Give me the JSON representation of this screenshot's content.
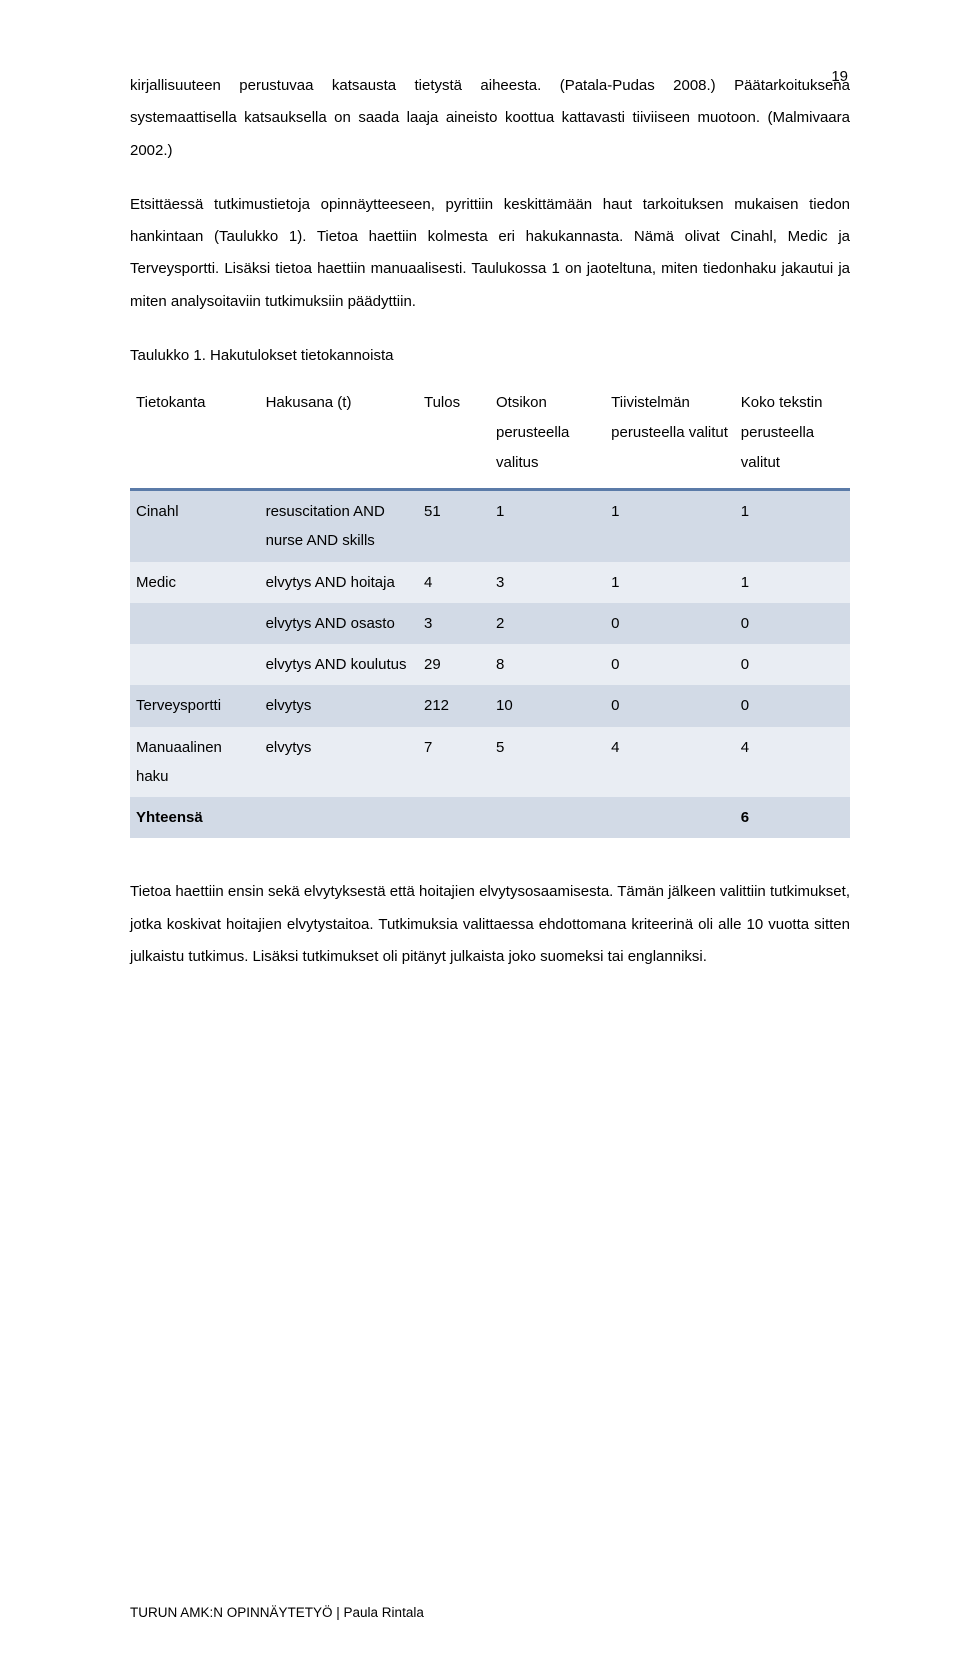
{
  "page_number": "19",
  "paragraphs": {
    "p1": "kirjallisuuteen perustuvaa katsausta tietystä aiheesta. (Patala-Pudas 2008.) Päätarkoituksena systemaattisella katsauksella on saada laaja aineisto koottua kattavasti tiiviiseen muotoon. (Malmivaara 2002.)",
    "p2": "Etsittäessä tutkimustietoja opinnäytteeseen, pyrittiin keskittämään haut tarkoituksen mukaisen tiedon hankintaan (Taulukko 1). Tietoa haettiin kolmesta eri hakukannasta. Nämä olivat Cinahl, Medic ja Terveysportti. Lisäksi tietoa haettiin manuaalisesti. Taulukossa 1 on jaoteltuna, miten tiedonhaku jakautui ja miten analysoitaviin tutkimuksiin päädyttiin.",
    "p3": "Tietoa haettiin ensin sekä elvytyksestä että hoitajien elvytysosaamisesta. Tämän jälkeen valittiin tutkimukset, jotka koskivat hoitajien elvytystaitoa. Tutkimuksia valittaessa ehdottomana kriteerinä oli alle 10 vuotta sitten julkaistu tutkimus. Lisäksi tutkimukset oli pitänyt julkaista joko suomeksi tai englanniksi."
  },
  "table_caption": "Taulukko 1. Hakutulokset tietokannoista",
  "table": {
    "headers": {
      "db": "Tietokanta",
      "term": "Hakusana (t)",
      "result": "Tulos",
      "by_title": "Otsikon perusteella valitus",
      "by_abstract": "Tiivistelmän perusteella valitut",
      "by_fulltext": "Koko tekstin perusteella valitut"
    },
    "rows": [
      {
        "db": "Cinahl",
        "term": "resuscitation AND nurse AND skills",
        "result": "51",
        "a": "1",
        "b": "1",
        "c": "1"
      },
      {
        "db": "Medic",
        "term": "elvytys AND hoitaja",
        "result": "4",
        "a": "3",
        "b": "1",
        "c": "1"
      },
      {
        "db": "",
        "term": "elvytys AND osasto",
        "result": "3",
        "a": "2",
        "b": "0",
        "c": "0"
      },
      {
        "db": "",
        "term": "elvytys AND koulutus",
        "result": "29",
        "a": "8",
        "b": "0",
        "c": "0"
      },
      {
        "db": "Terveysportti",
        "term": "elvytys",
        "result": "212",
        "a": "10",
        "b": "0",
        "c": "0"
      },
      {
        "db": "Manuaalinen haku",
        "term": "elvytys",
        "result": "7",
        "a": "5",
        "b": "4",
        "c": "4"
      }
    ],
    "total_label": "Yhteensä",
    "total_value": "6"
  },
  "footer": "TURUN AMK:N OPINNÄYTETYÖ | Paula Rintala",
  "colors": {
    "header_rule": "#5b7ba8",
    "row_odd": "#d2dae6",
    "row_even": "#e9edf3",
    "text": "#000000",
    "background": "#ffffff"
  }
}
